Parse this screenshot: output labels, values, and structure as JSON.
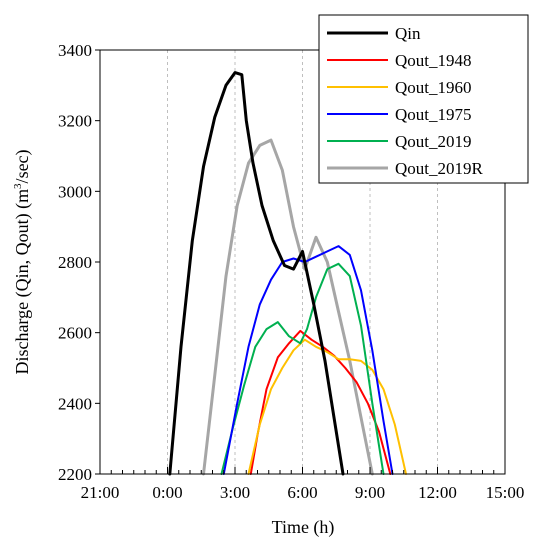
{
  "chart_data": {
    "type": "line",
    "xlabel": "Time (h)",
    "ylabel_prefix": "Discharge (Qin, Qout) (m",
    "ylabel_sup": "3",
    "ylabel_suffix": "/sec)",
    "x_unit": "hour",
    "xlim": [
      -3,
      15
    ],
    "ylim": [
      2200,
      3400
    ],
    "x_ticks": [
      -3,
      0,
      3,
      6,
      9,
      12,
      15
    ],
    "x_tick_labels": [
      "21:00",
      "0:00",
      "3:00",
      "6:00",
      "9:00",
      "12:00",
      "15:00"
    ],
    "x_minor_step": 0.5,
    "y_ticks": [
      2200,
      2400,
      2600,
      2800,
      3000,
      3200,
      3400
    ],
    "y_tick_labels": [
      "2200",
      "2400",
      "2600",
      "2800",
      "3000",
      "3200",
      "3400"
    ],
    "grid": "vertical-dashed",
    "legend_position": "top-right",
    "series": [
      {
        "name": "Qin",
        "color": "#000000",
        "x": [
          0.1,
          0.6,
          1.1,
          1.6,
          2.1,
          2.6,
          3.0,
          3.3,
          3.5,
          3.8,
          4.2,
          4.7,
          5.2,
          5.6,
          6.0,
          6.5,
          7.0,
          7.4,
          7.8
        ],
        "y": [
          2200,
          2560,
          2860,
          3070,
          3210,
          3300,
          3336,
          3330,
          3200,
          3080,
          2960,
          2860,
          2790,
          2780,
          2830,
          2680,
          2520,
          2360,
          2200
        ]
      },
      {
        "name": "Qout_1948",
        "color": "#ff0000",
        "x": [
          3.7,
          4.0,
          4.4,
          4.9,
          5.4,
          5.9,
          6.4,
          6.9,
          7.4,
          7.9,
          8.4,
          8.9,
          9.4,
          9.9
        ],
        "y": [
          2200,
          2310,
          2440,
          2530,
          2570,
          2605,
          2580,
          2560,
          2535,
          2500,
          2460,
          2400,
          2320,
          2200
        ]
      },
      {
        "name": "Qout_1960",
        "color": "#ffc000",
        "x": [
          3.6,
          4.1,
          4.6,
          5.1,
          5.6,
          6.1,
          6.6,
          7.1,
          7.6,
          8.1,
          8.6,
          9.1,
          9.6,
          10.1,
          10.6
        ],
        "y": [
          2200,
          2340,
          2440,
          2500,
          2550,
          2580,
          2560,
          2545,
          2525,
          2525,
          2520,
          2495,
          2440,
          2340,
          2200
        ]
      },
      {
        "name": "Qout_1975",
        "color": "#0000ff",
        "x": [
          2.5,
          3.1,
          3.6,
          4.1,
          4.6,
          5.1,
          5.6,
          6.1,
          6.6,
          7.1,
          7.6,
          8.1,
          8.6,
          9.1,
          9.6,
          10.0
        ],
        "y": [
          2200,
          2400,
          2560,
          2680,
          2750,
          2800,
          2810,
          2800,
          2815,
          2830,
          2845,
          2820,
          2720,
          2550,
          2350,
          2200
        ]
      },
      {
        "name": "Qout_2019",
        "color": "#00b050",
        "x": [
          2.4,
          2.9,
          3.4,
          3.9,
          4.4,
          4.9,
          5.4,
          5.9,
          6.2,
          6.6,
          7.1,
          7.6,
          8.1,
          8.6,
          9.1,
          9.6
        ],
        "y": [
          2200,
          2330,
          2450,
          2560,
          2610,
          2630,
          2590,
          2570,
          2610,
          2700,
          2780,
          2795,
          2760,
          2620,
          2400,
          2200
        ]
      },
      {
        "name": "Qout_2019R",
        "color": "#a6a6a6",
        "x": [
          1.6,
          2.1,
          2.6,
          3.1,
          3.6,
          4.1,
          4.6,
          5.1,
          5.6,
          6.1,
          6.6,
          7.1,
          7.6,
          8.1,
          8.6,
          9.1
        ],
        "y": [
          2200,
          2480,
          2760,
          2960,
          3080,
          3130,
          3145,
          3060,
          2900,
          2780,
          2870,
          2800,
          2660,
          2520,
          2360,
          2200
        ]
      }
    ]
  }
}
